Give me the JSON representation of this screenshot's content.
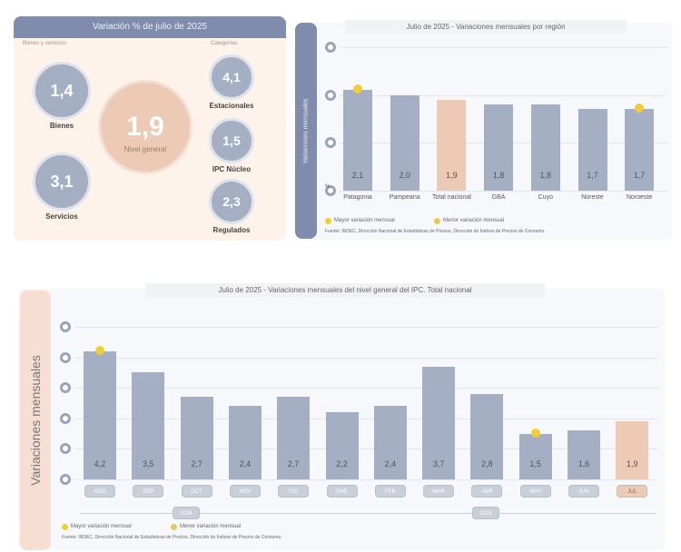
{
  "summary": {
    "title": "Variación % de julio de 2025",
    "left_heading": "Bienes y servicios",
    "right_heading": "Categorías",
    "center": {
      "value": "1,9",
      "label": "Nivel general"
    },
    "left": [
      {
        "value": "1,4",
        "label": "Bienes"
      },
      {
        "value": "3,1",
        "label": "Servicios"
      }
    ],
    "right": [
      {
        "value": "4,1",
        "label": "Estacionales"
      },
      {
        "value": "1,5",
        "label": "IPC Núcleo"
      },
      {
        "value": "2,3",
        "label": "Regulados"
      }
    ]
  },
  "chart_data": [
    {
      "type": "bar",
      "title": "Julio de 2025 - Variaciones mensuales por región",
      "ylabel": "Variaciones mensuales",
      "y_unit": "%",
      "categories": [
        "Patagonia",
        "Pampeana",
        "Total nacional",
        "GBA",
        "Cuyo",
        "Noreste",
        "Noroeste"
      ],
      "values": [
        2.1,
        2.0,
        1.9,
        1.8,
        1.8,
        1.7,
        1.7
      ],
      "value_labels": [
        "2,1",
        "2,0",
        "1,9",
        "1,8",
        "1,8",
        "1,7",
        "1,7"
      ],
      "highlight": "Total nacional",
      "ylim": [
        0,
        3
      ],
      "yticks": [
        0,
        1,
        2,
        3
      ],
      "grid": true,
      "markers": {
        "max": "Patagonia",
        "min": "Noroeste"
      },
      "legend": [
        "Mayor variación mensual",
        "Menor variación mensual"
      ],
      "source": "Fuente: INDEC, Dirección Nacional de Estadísticas de Precios, Dirección de Índices de Precios de Consumo."
    },
    {
      "type": "bar",
      "title": "Julio de 2025 - Variaciones mensuales del nivel general del IPC. Total nacional",
      "ylabel": "Variaciones mensuales",
      "categories": [
        "AGO",
        "SEP",
        "OCT",
        "NOV",
        "DIC",
        "ENE",
        "FEB",
        "MAR",
        "ABR",
        "MAY",
        "JUN",
        "JUL"
      ],
      "years": [
        "2024",
        "2025"
      ],
      "values": [
        4.2,
        3.5,
        2.7,
        2.4,
        2.7,
        2.2,
        2.4,
        3.7,
        2.8,
        1.5,
        1.6,
        1.9
      ],
      "value_labels": [
        "4,2",
        "3,5",
        "2,7",
        "2,4",
        "2,7",
        "2,2",
        "2,4",
        "3,7",
        "2,8",
        "1,5",
        "1,6",
        "1,9"
      ],
      "highlight": "JUL",
      "ylim": [
        0,
        5
      ],
      "yticks": [
        0,
        1,
        2,
        3,
        4,
        5
      ],
      "grid": true,
      "markers": {
        "max": "AGO",
        "min": "MAY"
      },
      "legend": [
        "Mayor variación mensual",
        "Menor variación mensual"
      ],
      "source": "Fuente: INDEC, Dirección Nacional de Estadísticas de Precios, Dirección de Índices de Precios de Consumo."
    }
  ],
  "colors": {
    "bar": "#a5afc3",
    "highlight": "#eccab6",
    "marker": "#f2cd3a",
    "header": "#7f8cab",
    "panel_bg": "#fdf3ea"
  }
}
